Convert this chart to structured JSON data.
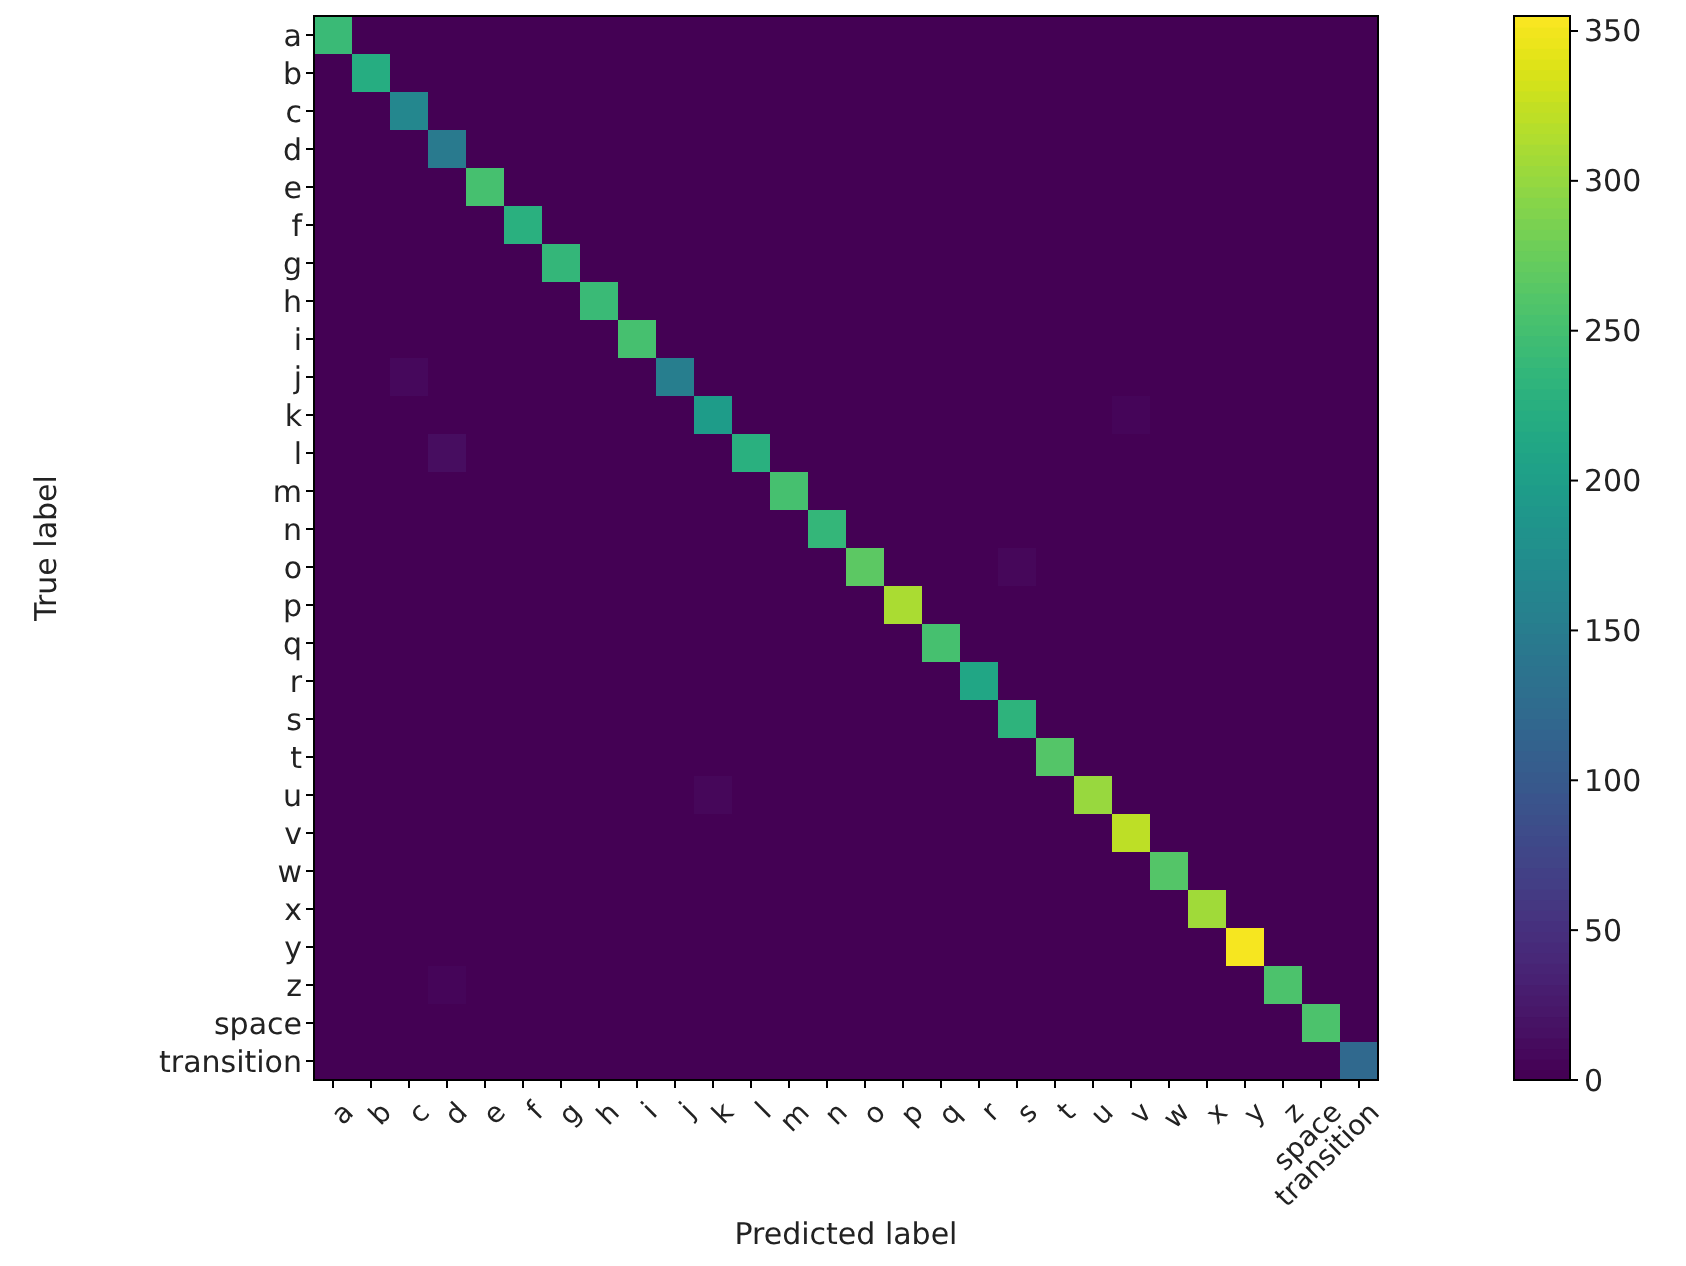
{
  "chart_data": {
    "type": "heatmap",
    "xlabel": "Predicted label",
    "ylabel": "True label",
    "categories": [
      "a",
      "b",
      "c",
      "d",
      "e",
      "f",
      "g",
      "h",
      "i",
      "j",
      "k",
      "l",
      "m",
      "n",
      "o",
      "p",
      "q",
      "r",
      "s",
      "t",
      "u",
      "v",
      "w",
      "x",
      "y",
      "z",
      "space",
      "transition"
    ],
    "y_categories": [
      "a",
      "b",
      "c",
      "d",
      "e",
      "f",
      "g",
      "h",
      "i",
      "j",
      "k",
      "l",
      "m",
      "n",
      "o",
      "p",
      "q",
      "r",
      "s",
      "t",
      "u",
      "v",
      "w",
      "x",
      "y",
      "z",
      "space",
      "transition"
    ],
    "clim": [
      0,
      355
    ],
    "cticks": [
      0,
      50,
      100,
      150,
      200,
      250,
      300,
      350
    ],
    "cells": [
      [
        240,
        0,
        0,
        0,
        0,
        0,
        0,
        0,
        0,
        0,
        0,
        0,
        0,
        0,
        0,
        0,
        0,
        0,
        0,
        0,
        0,
        0,
        0,
        0,
        0,
        0,
        0,
        0
      ],
      [
        0,
        220,
        0,
        0,
        0,
        0,
        0,
        0,
        0,
        0,
        0,
        0,
        0,
        0,
        0,
        0,
        0,
        0,
        0,
        0,
        0,
        0,
        0,
        0,
        0,
        0,
        0,
        0
      ],
      [
        0,
        0,
        165,
        0,
        0,
        0,
        0,
        0,
        0,
        0,
        0,
        0,
        0,
        0,
        0,
        0,
        0,
        0,
        0,
        0,
        0,
        0,
        0,
        0,
        0,
        0,
        0,
        0
      ],
      [
        0,
        0,
        0,
        145,
        0,
        0,
        0,
        0,
        0,
        0,
        0,
        0,
        0,
        0,
        0,
        0,
        0,
        0,
        0,
        0,
        0,
        0,
        0,
        0,
        0,
        0,
        0,
        0
      ],
      [
        0,
        0,
        0,
        0,
        250,
        0,
        0,
        0,
        0,
        0,
        0,
        0,
        0,
        0,
        0,
        0,
        0,
        0,
        0,
        0,
        0,
        0,
        0,
        0,
        0,
        0,
        0,
        0
      ],
      [
        0,
        0,
        0,
        0,
        0,
        225,
        0,
        0,
        0,
        0,
        0,
        0,
        0,
        0,
        0,
        0,
        0,
        0,
        0,
        0,
        0,
        0,
        0,
        0,
        0,
        0,
        0,
        0
      ],
      [
        0,
        0,
        0,
        0,
        0,
        0,
        235,
        0,
        0,
        0,
        0,
        0,
        0,
        0,
        0,
        0,
        0,
        0,
        0,
        0,
        0,
        0,
        0,
        0,
        0,
        0,
        0,
        0
      ],
      [
        0,
        0,
        0,
        0,
        0,
        0,
        0,
        240,
        0,
        0,
        0,
        0,
        0,
        0,
        0,
        0,
        0,
        0,
        0,
        0,
        0,
        0,
        0,
        0,
        0,
        0,
        0,
        0
      ],
      [
        0,
        0,
        0,
        0,
        0,
        0,
        0,
        0,
        250,
        0,
        0,
        0,
        0,
        0,
        0,
        0,
        0,
        0,
        0,
        0,
        0,
        0,
        0,
        0,
        0,
        0,
        0,
        0
      ],
      [
        0,
        0,
        8,
        0,
        0,
        0,
        0,
        0,
        0,
        150,
        0,
        0,
        0,
        0,
        0,
        0,
        0,
        0,
        0,
        0,
        0,
        0,
        0,
        0,
        0,
        0,
        0,
        0
      ],
      [
        0,
        0,
        0,
        0,
        0,
        0,
        0,
        0,
        0,
        0,
        195,
        0,
        0,
        0,
        0,
        0,
        0,
        0,
        0,
        0,
        0,
        5,
        0,
        0,
        0,
        0,
        0,
        0
      ],
      [
        0,
        0,
        0,
        12,
        0,
        0,
        0,
        0,
        0,
        0,
        0,
        225,
        0,
        0,
        0,
        0,
        0,
        0,
        0,
        0,
        0,
        0,
        0,
        0,
        0,
        0,
        0,
        0
      ],
      [
        0,
        0,
        0,
        0,
        0,
        0,
        0,
        0,
        0,
        0,
        0,
        0,
        250,
        0,
        0,
        0,
        0,
        0,
        0,
        0,
        0,
        0,
        0,
        0,
        0,
        0,
        0,
        0
      ],
      [
        0,
        0,
        0,
        0,
        0,
        0,
        0,
        0,
        0,
        0,
        0,
        0,
        0,
        235,
        0,
        0,
        0,
        0,
        0,
        0,
        0,
        0,
        0,
        0,
        0,
        0,
        0,
        0
      ],
      [
        0,
        0,
        0,
        0,
        0,
        0,
        0,
        0,
        0,
        0,
        0,
        0,
        0,
        0,
        265,
        0,
        0,
        0,
        6,
        0,
        0,
        0,
        0,
        0,
        0,
        0,
        0,
        0
      ],
      [
        0,
        0,
        0,
        0,
        0,
        0,
        0,
        0,
        0,
        0,
        0,
        0,
        0,
        0,
        0,
        310,
        0,
        0,
        0,
        0,
        0,
        0,
        0,
        0,
        0,
        0,
        0,
        0
      ],
      [
        0,
        0,
        0,
        0,
        0,
        0,
        0,
        0,
        0,
        0,
        0,
        0,
        0,
        0,
        0,
        0,
        250,
        0,
        0,
        0,
        0,
        0,
        0,
        0,
        0,
        0,
        0,
        0
      ],
      [
        0,
        0,
        0,
        0,
        0,
        0,
        0,
        0,
        0,
        0,
        0,
        0,
        0,
        0,
        0,
        0,
        0,
        210,
        0,
        0,
        0,
        0,
        0,
        0,
        0,
        0,
        0,
        0
      ],
      [
        0,
        0,
        0,
        0,
        0,
        0,
        0,
        0,
        0,
        0,
        0,
        0,
        0,
        0,
        0,
        0,
        0,
        0,
        230,
        0,
        0,
        0,
        0,
        0,
        0,
        0,
        0,
        0
      ],
      [
        0,
        0,
        0,
        0,
        0,
        0,
        0,
        0,
        0,
        0,
        0,
        0,
        0,
        0,
        0,
        0,
        0,
        0,
        0,
        260,
        0,
        0,
        0,
        0,
        0,
        0,
        0,
        0
      ],
      [
        0,
        0,
        0,
        0,
        0,
        0,
        0,
        0,
        0,
        0,
        6,
        0,
        0,
        0,
        0,
        0,
        0,
        0,
        0,
        0,
        300,
        0,
        0,
        0,
        0,
        0,
        0,
        0
      ],
      [
        0,
        0,
        0,
        0,
        0,
        0,
        0,
        0,
        0,
        0,
        0,
        0,
        0,
        0,
        0,
        0,
        0,
        0,
        0,
        0,
        0,
        320,
        0,
        0,
        0,
        0,
        0,
        0
      ],
      [
        0,
        0,
        0,
        0,
        0,
        0,
        0,
        0,
        0,
        0,
        0,
        0,
        0,
        0,
        0,
        0,
        0,
        0,
        0,
        0,
        0,
        0,
        260,
        0,
        0,
        0,
        0,
        0
      ],
      [
        0,
        0,
        0,
        0,
        0,
        0,
        0,
        0,
        0,
        0,
        0,
        0,
        0,
        0,
        0,
        0,
        0,
        0,
        0,
        0,
        0,
        0,
        0,
        305,
        0,
        0,
        0,
        0
      ],
      [
        0,
        0,
        0,
        0,
        0,
        0,
        0,
        0,
        0,
        0,
        0,
        0,
        0,
        0,
        0,
        0,
        0,
        0,
        0,
        0,
        0,
        0,
        0,
        0,
        350,
        0,
        0,
        0
      ],
      [
        0,
        0,
        0,
        5,
        0,
        0,
        0,
        0,
        0,
        0,
        0,
        0,
        0,
        0,
        0,
        0,
        0,
        0,
        0,
        0,
        0,
        0,
        0,
        0,
        0,
        255,
        0,
        0
      ],
      [
        0,
        0,
        0,
        0,
        0,
        0,
        0,
        0,
        0,
        0,
        0,
        0,
        0,
        0,
        0,
        0,
        0,
        0,
        0,
        0,
        0,
        0,
        0,
        0,
        0,
        0,
        255,
        0
      ],
      [
        0,
        0,
        0,
        0,
        0,
        0,
        0,
        0,
        0,
        0,
        0,
        0,
        0,
        0,
        0,
        0,
        0,
        0,
        0,
        0,
        0,
        0,
        0,
        0,
        0,
        0,
        0,
        120
      ]
    ]
  }
}
